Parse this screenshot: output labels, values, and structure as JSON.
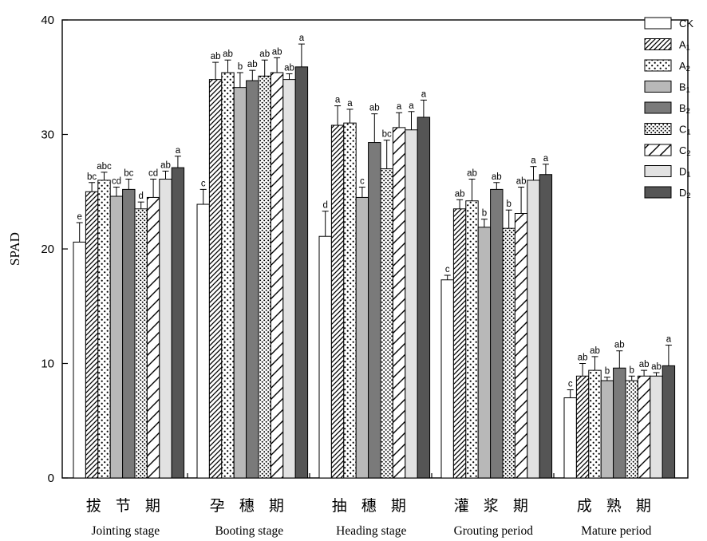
{
  "chart_data": {
    "type": "bar",
    "ylabel": "SPAD",
    "ylim": [
      0,
      40
    ],
    "yticks": [
      0,
      10,
      20,
      30,
      40
    ],
    "grid": false,
    "legend_position": "top-right",
    "categories": [
      {
        "cn": "拔 节 期",
        "en": "Jointing stage"
      },
      {
        "cn": "孕 穗 期",
        "en": "Booting stage"
      },
      {
        "cn": "抽 穗 期",
        "en": "Heading stage"
      },
      {
        "cn": "灌 浆 期",
        "en": "Grouting period"
      },
      {
        "cn": "成 熟 期",
        "en": "Mature period"
      }
    ],
    "series": [
      {
        "name": "CK",
        "base": "CK",
        "sub": "",
        "pattern": "white",
        "values": [
          20.6,
          23.9,
          21.1,
          17.3,
          7.0
        ],
        "errors": [
          1.7,
          1.3,
          2.2,
          0.4,
          0.7
        ],
        "letters": [
          "e",
          "c",
          "d",
          "c",
          "c"
        ]
      },
      {
        "name": "A1",
        "base": "A",
        "sub": "1",
        "pattern": "hatch-dense",
        "values": [
          25.0,
          34.8,
          30.8,
          23.5,
          8.9
        ],
        "errors": [
          0.8,
          1.5,
          1.7,
          0.8,
          1.1
        ],
        "letters": [
          "bc",
          "ab",
          "a",
          "ab",
          "ab"
        ]
      },
      {
        "name": "A2",
        "base": "A",
        "sub": "2",
        "pattern": "dots-sparse",
        "values": [
          26.0,
          35.4,
          31.0,
          24.2,
          9.4
        ],
        "errors": [
          0.7,
          1.1,
          1.2,
          1.9,
          1.2
        ],
        "letters": [
          "abc",
          "ab",
          "a",
          "ab",
          "ab"
        ]
      },
      {
        "name": "B1",
        "base": "B",
        "sub": "1",
        "pattern": "lightgray",
        "values": [
          24.6,
          34.1,
          24.5,
          21.9,
          8.5
        ],
        "errors": [
          0.8,
          1.3,
          0.9,
          0.7,
          0.3
        ],
        "letters": [
          "cd",
          "b",
          "c",
          "b",
          "b"
        ]
      },
      {
        "name": "B2",
        "base": "B",
        "sub": "2",
        "pattern": "gray",
        "values": [
          25.2,
          34.7,
          29.3,
          25.2,
          9.6
        ],
        "errors": [
          0.9,
          0.9,
          2.5,
          0.6,
          1.5
        ],
        "letters": [
          "bc",
          "ab",
          "ab",
          "ab",
          "ab"
        ]
      },
      {
        "name": "C1",
        "base": "C",
        "sub": "1",
        "pattern": "dots-dense",
        "values": [
          23.5,
          35.1,
          27.0,
          21.8,
          8.5
        ],
        "errors": [
          0.6,
          1.4,
          2.5,
          1.6,
          0.4
        ],
        "letters": [
          "d",
          "ab",
          "bc",
          "b",
          "b"
        ]
      },
      {
        "name": "C2",
        "base": "C",
        "sub": "2",
        "pattern": "hatch-sparse",
        "values": [
          24.5,
          35.4,
          30.6,
          23.1,
          8.9
        ],
        "errors": [
          1.6,
          1.3,
          1.3,
          2.3,
          0.5
        ],
        "letters": [
          "cd",
          "ab",
          "a",
          "ab",
          "ab"
        ]
      },
      {
        "name": "D1",
        "base": "D",
        "sub": "1",
        "pattern": "verylightgray",
        "values": [
          26.1,
          34.8,
          30.4,
          26.0,
          8.9
        ],
        "errors": [
          0.7,
          0.5,
          1.6,
          1.2,
          0.3
        ],
        "letters": [
          "ab",
          "ab",
          "a",
          "a",
          "ab"
        ]
      },
      {
        "name": "D2",
        "base": "D",
        "sub": "2",
        "pattern": "darkgray",
        "values": [
          27.1,
          35.9,
          31.5,
          26.5,
          9.8
        ],
        "errors": [
          1.0,
          2.0,
          1.5,
          0.9,
          1.8
        ],
        "letters": [
          "a",
          "a",
          "a",
          "a",
          "a"
        ]
      }
    ]
  }
}
